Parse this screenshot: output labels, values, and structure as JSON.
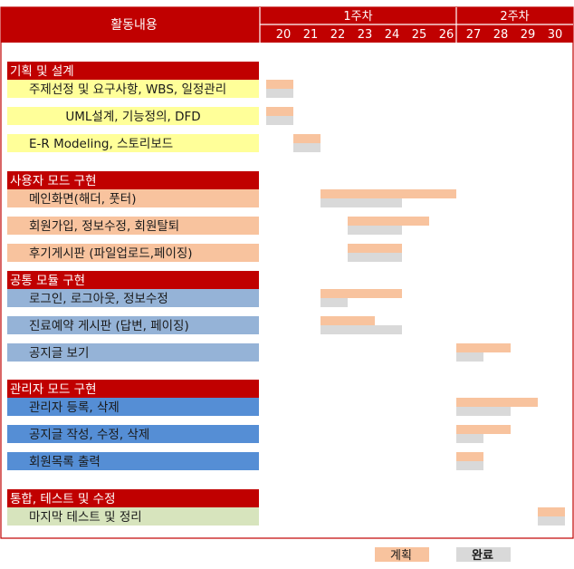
{
  "chart_data": {
    "type": "gantt",
    "header": {
      "activity_label": "활동내용",
      "weeks": [
        {
          "label": "1주차",
          "days": [
            20,
            21,
            22,
            23,
            24,
            25,
            26
          ]
        },
        {
          "label": "2주차",
          "days": [
            27,
            28,
            29,
            30
          ]
        }
      ]
    },
    "days": [
      "20",
      "21",
      "22",
      "23",
      "24",
      "25",
      "26",
      "27",
      "28",
      "29",
      "30"
    ],
    "legend": {
      "plan": "계획",
      "done": "완료"
    },
    "colors": {
      "header": "#c00000",
      "plan": "#f8c39e",
      "done": "#d9d9d9",
      "yellow_row": "#ffff99",
      "orange_row": "#f8c39e",
      "blue_light_row": "#95b3d7",
      "blue_row": "#558ed5",
      "green_row": "#d7e4bd"
    },
    "groups": [
      {
        "title": "기획 및 설계",
        "color": "yellow_row",
        "tasks": [
          {
            "label": "주제선정 및 요구사항, WBS, 일정관리",
            "plan": [
              "20",
              "20"
            ],
            "done": [
              "20",
              "20"
            ]
          },
          {
            "label": "UML설계, 기능정의, DFD",
            "plan": [
              "20",
              "20"
            ],
            "done": [
              "20",
              "20"
            ]
          },
          {
            "label": "E-R Modeling, 스토리보드",
            "plan": [
              "21",
              "21"
            ],
            "done": [
              "21",
              "21"
            ]
          }
        ]
      },
      {
        "title": "사용자 모드 구현",
        "color": "orange_row",
        "tasks": [
          {
            "label": "메인화면(해더, 풋터)",
            "plan": [
              "22",
              "26"
            ],
            "done": [
              "22",
              "24"
            ]
          },
          {
            "label": "회원가입, 정보수정, 회원탈퇴",
            "plan": [
              "23",
              "25"
            ],
            "done": [
              "23",
              "24"
            ]
          },
          {
            "label": "후기게시판 (파일업로드,페이징)",
            "plan": [
              "23",
              "24"
            ],
            "done": [
              "23",
              "24"
            ]
          }
        ]
      },
      {
        "title": "공통 모듈 구현",
        "color": "blue_light_row",
        "tasks": [
          {
            "label": "로그인, 로그아웃, 정보수정",
            "plan": [
              "22",
              "24"
            ],
            "done": [
              "22",
              "22"
            ]
          },
          {
            "label": "진료예약 게시판 (답변, 페이징)",
            "plan": [
              "22",
              "23"
            ],
            "done": [
              "22",
              "24"
            ]
          },
          {
            "label": "공지글 보기",
            "plan": [
              "27",
              "28"
            ],
            "done": [
              "27",
              "27"
            ]
          }
        ]
      },
      {
        "title": "관리자 모드 구현",
        "color": "blue_row",
        "tasks": [
          {
            "label": "관리자 등록, 삭제",
            "plan": [
              "27",
              "29"
            ],
            "done": [
              "27",
              "28"
            ]
          },
          {
            "label": "공지글 작성, 수정, 삭제",
            "plan": [
              "27",
              "28"
            ],
            "done": [
              "27",
              "27"
            ]
          },
          {
            "label": "회원목록 출력",
            "plan": [
              "27",
              "27"
            ],
            "done": [
              "27",
              "27"
            ]
          }
        ]
      },
      {
        "title": "통합, 테스트 및 수정",
        "color": "green_row",
        "tasks": [
          {
            "label": "마지막 테스트 및 정리",
            "plan": [
              "30",
              "30"
            ],
            "done": [
              "30",
              "30"
            ]
          }
        ]
      }
    ]
  }
}
